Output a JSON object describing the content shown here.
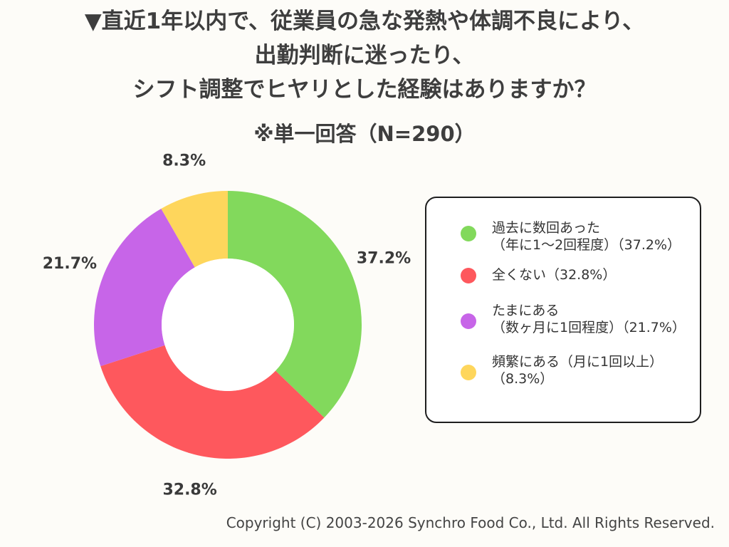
{
  "title_lines": [
    "▼直近1年以内で、従業員の急な発熱や体調不良により、",
    "出勤判断に迷ったり、",
    "シフト調整でヒヤリとした経験はありますか？"
  ],
  "subtitle": "※単一回答（N=290）",
  "chart_data": {
    "type": "pie",
    "variant": "donut",
    "slices": [
      {
        "label_lines": [
          "過去に数回あった",
          "（年に1〜2回程度）（37.2%）"
        ],
        "value": 37.2,
        "value_label": "37.2%",
        "color": "#82d95c"
      },
      {
        "label_lines": [
          "全くない（32.8%）"
        ],
        "value": 32.8,
        "value_label": "32.8%",
        "color": "#fe585d"
      },
      {
        "label_lines": [
          "たまにある",
          "（数ヶ月に1回程度）（21.7%）"
        ],
        "value": 21.7,
        "value_label": "21.7%",
        "color": "#c765e8"
      },
      {
        "label_lines": [
          "頻繁にある（月に1回以上）",
          "（8.3%）"
        ],
        "value": 8.3,
        "value_label": "8.3%",
        "color": "#fed65c"
      }
    ],
    "start": "top",
    "direction": "clockwise",
    "legend_position": "right"
  },
  "copyright": "Copyright (C) 2003-2026  Synchro Food Co., Ltd. All Rights Reserved."
}
